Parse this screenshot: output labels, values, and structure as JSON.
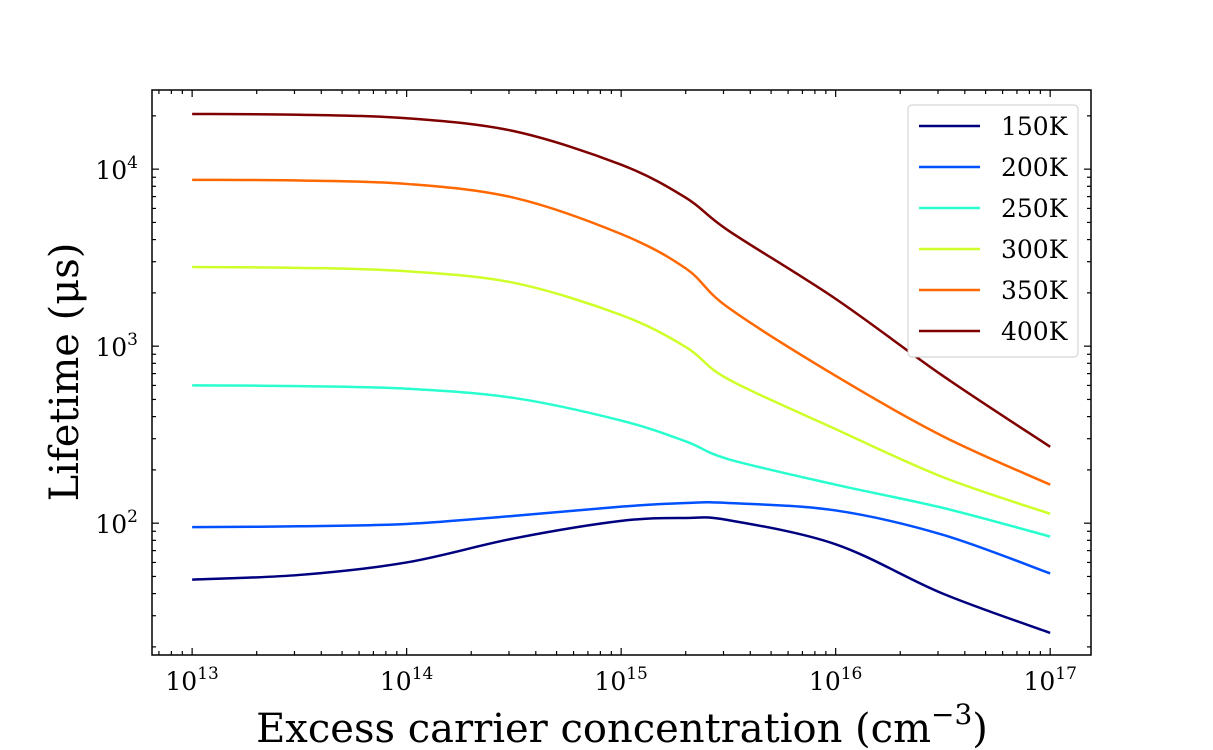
{
  "chart_data": {
    "type": "line",
    "title": "",
    "xlabel": "Excess carrier concentration (cm",
    "xlabel_sup": "−3",
    "xlabel_suffix": ")",
    "ylabel": "Lifetime (μs)",
    "xscale": "log",
    "yscale": "log",
    "xlim": [
      6500000000000.0,
      1.55e+17
    ],
    "ylim": [
      18,
      28000
    ],
    "x_ticks": [
      {
        "base": "10",
        "exp": "13",
        "value": 10000000000000.0
      },
      {
        "base": "10",
        "exp": "14",
        "value": 100000000000000.0
      },
      {
        "base": "10",
        "exp": "15",
        "value": 1000000000000000.0
      },
      {
        "base": "10",
        "exp": "16",
        "value": 1e+16
      },
      {
        "base": "10",
        "exp": "17",
        "value": 1e+17
      }
    ],
    "y_ticks": [
      {
        "base": "10",
        "exp": "2",
        "value": 100
      },
      {
        "base": "10",
        "exp": "3",
        "value": 1000
      },
      {
        "base": "10",
        "exp": "4",
        "value": 10000
      }
    ],
    "grid": false,
    "legend_position": "top-right",
    "x": [
      10000000000000.0,
      31600000000000.0,
      100000000000000.0,
      316000000000000.0,
      1000000000000000.0,
      2000000000000000.0,
      3160000000000000.0,
      1e+16,
      3.16e+16,
      1e+17
    ],
    "series": [
      {
        "name": "150K",
        "color": "#00007f",
        "values": [
          48,
          51,
          60,
          82,
          103,
          107,
          104,
          76,
          40,
          24
        ]
      },
      {
        "name": "200K",
        "color": "#0050ff",
        "values": [
          95,
          96,
          99,
          110,
          124,
          130,
          130,
          118,
          86,
          52
        ]
      },
      {
        "name": "250K",
        "color": "#29ffce",
        "values": [
          600,
          595,
          575,
          510,
          380,
          290,
          230,
          165,
          122,
          84
        ]
      },
      {
        "name": "300K",
        "color": "#ceff29",
        "values": [
          2800,
          2770,
          2650,
          2280,
          1500,
          990,
          650,
          340,
          182,
          113
        ]
      },
      {
        "name": "350K",
        "color": "#ff6800",
        "values": [
          8700,
          8630,
          8250,
          6900,
          4300,
          2750,
          1650,
          680,
          310,
          165
        ]
      },
      {
        "name": "400K",
        "color": "#7f0000",
        "values": [
          20500,
          20300,
          19400,
          16400,
          10600,
          6900,
          4500,
          1850,
          680,
          270
        ]
      }
    ]
  }
}
